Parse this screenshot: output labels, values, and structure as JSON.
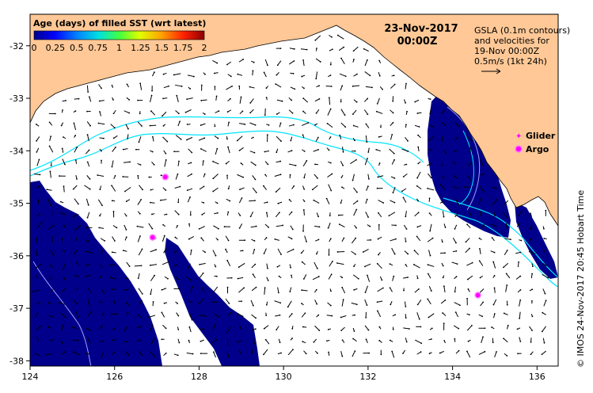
{
  "map": {
    "date": "23-Nov-2017",
    "time": "00:00Z",
    "colorbar": {
      "title": "Age (days) of filled SST (wrt latest)",
      "ticks": [
        "0",
        "0.25",
        "0.5",
        "0.75",
        "1",
        "1.25",
        "1.5",
        "1.75",
        "2"
      ],
      "range": [
        0,
        2
      ],
      "colors": [
        "#00008b",
        "#0000ff",
        "#0080ff",
        "#00e0e0",
        "#40ff40",
        "#e0ff00",
        "#ffa000",
        "#ff2000",
        "#8b0000"
      ]
    },
    "info": {
      "line1": "GSLA (0.1m contours)",
      "line2": "and velocities for",
      "line3": "19-Nov 00:00Z",
      "line4": "0.5m/s (1kt 24h)"
    },
    "legend": {
      "glider": "Glider",
      "argo": "Argo"
    },
    "credit": "© IMOS 24-Nov-2017 20:45 Hobart Time",
    "x_ticks": [
      "124",
      "126",
      "128",
      "130",
      "132",
      "134",
      "136"
    ],
    "y_ticks": [
      "-32",
      "-33",
      "-34",
      "-35",
      "-36",
      "-37",
      "-38"
    ],
    "lon_range": [
      124,
      136.5
    ],
    "lat_range": [
      -38.1,
      -31.4
    ],
    "argo_floats": [
      {
        "lon": 127.2,
        "lat": -34.5
      },
      {
        "lon": 126.9,
        "lat": -35.65
      },
      {
        "lon": 134.6,
        "lat": -36.75
      }
    ],
    "colors": {
      "land": "#ffc896",
      "ocean_old": "#00008b",
      "contour": "#00e5ff",
      "marker": "#ff00ff"
    }
  }
}
